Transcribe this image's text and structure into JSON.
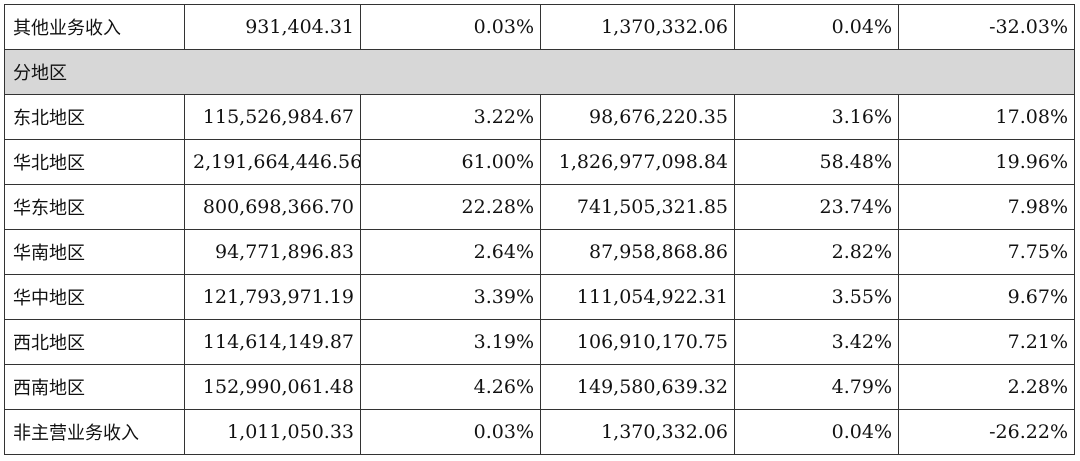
{
  "top_row": {
    "label": "其他业务收入",
    "values": [
      "931,404.31",
      "0.03%",
      "1,370,332.06",
      "0.04%",
      "-32.03%"
    ]
  },
  "section": {
    "label": "分地区"
  },
  "rows": [
    {
      "label": "东北地区",
      "values": [
        "115,526,984.67",
        "3.22%",
        "98,676,220.35",
        "3.16%",
        "17.08%"
      ]
    },
    {
      "label": "华北地区",
      "values": [
        "2,191,664,446.56",
        "61.00%",
        "1,826,977,098.84",
        "58.48%",
        "19.96%"
      ]
    },
    {
      "label": "华东地区",
      "values": [
        "800,698,366.70",
        "22.28%",
        "741,505,321.85",
        "23.74%",
        "7.98%"
      ]
    },
    {
      "label": "华南地区",
      "values": [
        "94,771,896.83",
        "2.64%",
        "87,958,868.86",
        "2.82%",
        "7.75%"
      ]
    },
    {
      "label": "华中地区",
      "values": [
        "121,793,971.19",
        "3.39%",
        "111,054,922.31",
        "3.55%",
        "9.67%"
      ]
    },
    {
      "label": "西北地区",
      "values": [
        "114,614,149.87",
        "3.19%",
        "106,910,170.75",
        "3.42%",
        "7.21%"
      ]
    },
    {
      "label": "西南地区",
      "values": [
        "152,990,061.48",
        "4.26%",
        "149,580,639.32",
        "4.79%",
        "2.28%"
      ]
    },
    {
      "label": "非主营业务收入",
      "values": [
        "1,011,050.33",
        "0.03%",
        "1,370,332.06",
        "0.04%",
        "-26.22%"
      ]
    }
  ]
}
